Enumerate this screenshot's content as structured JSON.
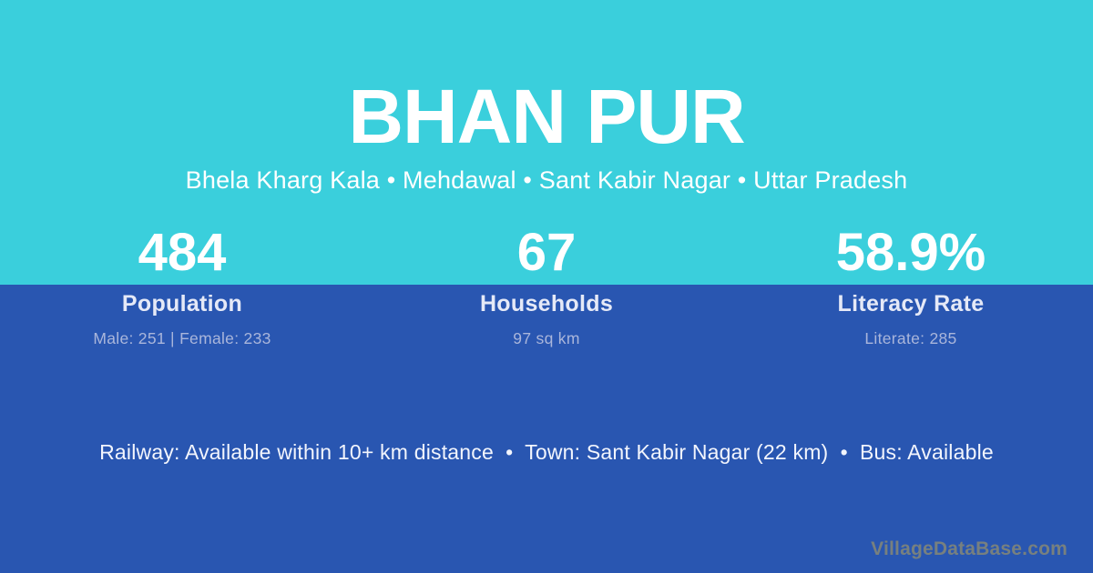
{
  "colors": {
    "top_background": "#3acfdc",
    "bottom_background": "#2956b1",
    "title_text": "#ffffff",
    "stat_label_text": "#e5e9f7",
    "stat_detail_text": "#aab6db",
    "watermark_text": "#7c837d"
  },
  "header": {
    "title": "BHAN PUR",
    "subtitle": "Bhela Kharg Kala • Mehdawal • Sant Kabir Nagar • Uttar Pradesh"
  },
  "stats": [
    {
      "value": "484",
      "label": "Population",
      "detail": "Male: 251 | Female: 233"
    },
    {
      "value": "67",
      "label": "Households",
      "detail": "97 sq km"
    },
    {
      "value": "58.9%",
      "label": "Literacy Rate",
      "detail": "Literate: 285"
    }
  ],
  "footer": {
    "info": "Railway: Available within 10+ km distance  •  Town: Sant Kabir Nagar (22 km)  •  Bus: Available",
    "watermark": "VillageDataBase.com"
  }
}
